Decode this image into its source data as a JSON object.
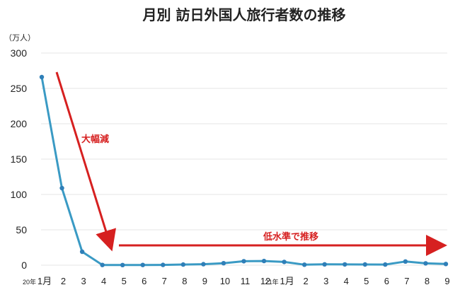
{
  "chart_data": {
    "type": "line",
    "title": "月別 訪日外国人旅行者数の推移",
    "unit_label": "（万人）",
    "categories": [
      "1月",
      "2",
      "3",
      "4",
      "5",
      "6",
      "7",
      "8",
      "9",
      "10",
      "11",
      "12",
      "1月",
      "2",
      "3",
      "4",
      "5",
      "6",
      "7",
      "8",
      "9"
    ],
    "year_labels": [
      {
        "index": 0,
        "text": "20年"
      },
      {
        "index": 12,
        "text": "21年"
      }
    ],
    "series": [
      {
        "values": [
          266,
          109,
          19,
          0.3,
          0.2,
          0.3,
          0.4,
          0.9,
          1.4,
          2.8,
          5.6,
          5.9,
          4.6,
          0.7,
          1.2,
          1.1,
          1.0,
          0.9,
          5.2,
          2.6,
          1.7
        ]
      }
    ],
    "ylim": [
      0,
      300
    ],
    "yticks": [
      0,
      50,
      100,
      150,
      200,
      250,
      300
    ],
    "grid": true,
    "annotations": [
      {
        "text": "大幅減",
        "color": "#d62020"
      },
      {
        "text": "低水準で推移",
        "color": "#d62020"
      }
    ],
    "colors": {
      "line": "#3a9ac4",
      "marker": "#2f7fb8",
      "arrow": "#d62020",
      "grid": "#e6e6e6",
      "text": "#222222"
    }
  }
}
